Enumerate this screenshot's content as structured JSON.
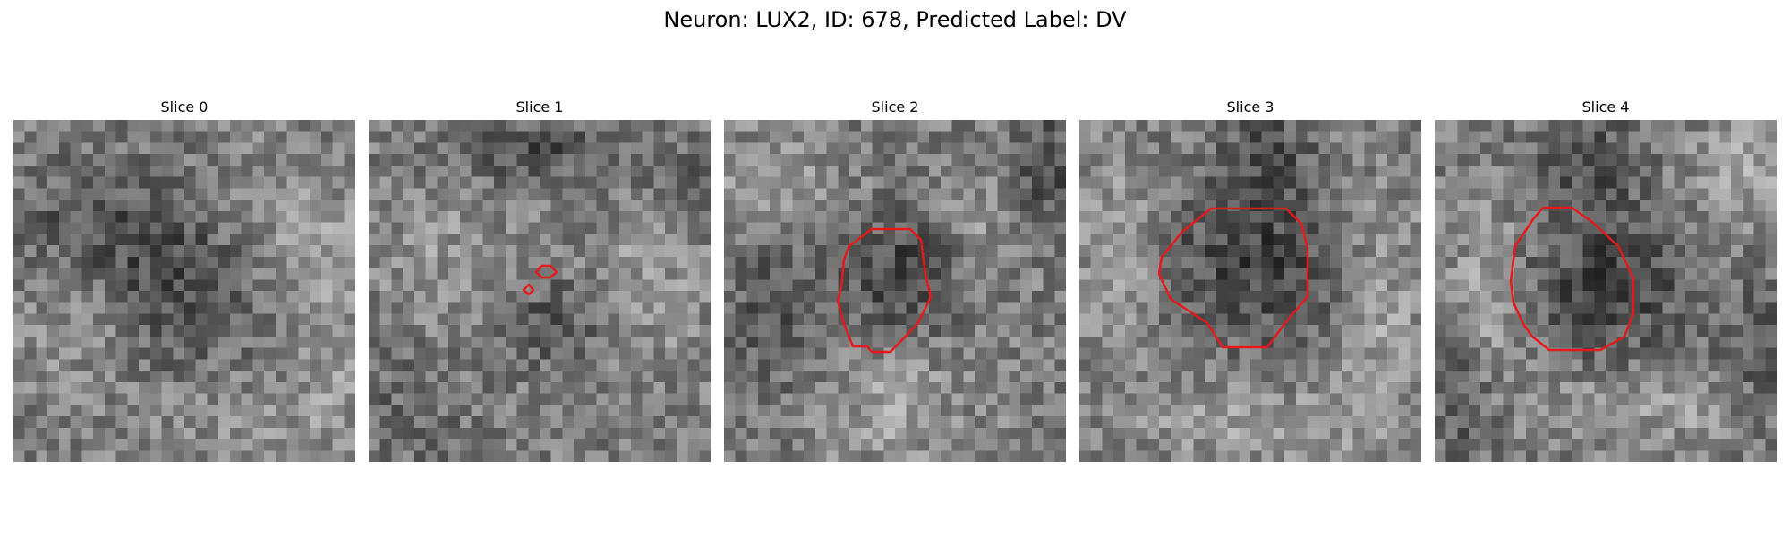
{
  "figure": {
    "title": "Neuron: LUX2, ID: 678, Predicted Label: DV"
  },
  "panels": [
    {
      "title": "Slice 0"
    },
    {
      "title": "Slice 1"
    },
    {
      "title": "Slice 2"
    },
    {
      "title": "Slice 3"
    },
    {
      "title": "Slice 4"
    }
  ],
  "colors": {
    "contour": "#e41a1c",
    "background": "#ffffff"
  }
}
